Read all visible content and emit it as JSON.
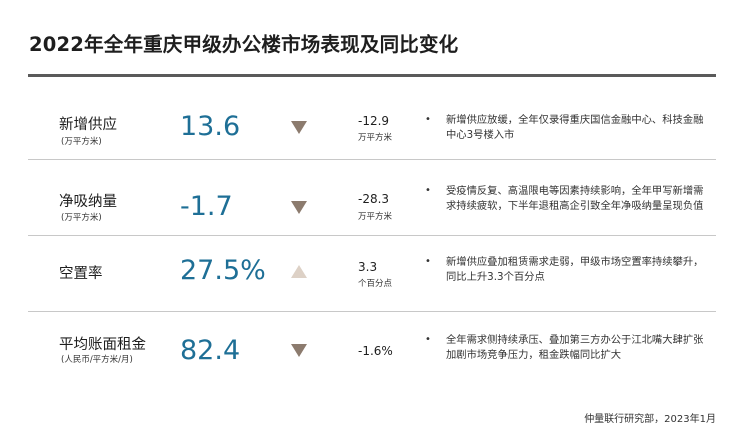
{
  "title": "2022年全年重庆甲级办公楼市场表现及同比变化",
  "rows": [
    {
      "name": "新增供应",
      "unit": "(万平方米)",
      "value": "13.6",
      "direction": "down",
      "change": "-12.9",
      "change_unit": "万平方米",
      "bullet": "•",
      "comment": "新增供应放缓，全年仅录得重庆国信金融中心、科技金融中心3号楼入市"
    },
    {
      "name": "净吸纳量",
      "unit": "(万平方米)",
      "value": "-1.7",
      "direction": "down",
      "change": "-28.3",
      "change_unit": "万平方米",
      "bullet": "•",
      "comment": "受疫情反复、高温限电等因素持续影响，全年甲写新增需求持续疲软，下半年退租高企引致全年净吸纳量呈现负值"
    },
    {
      "name": "空置率",
      "unit": "",
      "value": "27.5%",
      "direction": "up",
      "change": "3.3",
      "change_unit": "个百分点",
      "bullet": "•",
      "comment": "新增供应叠加租赁需求走弱，甲级市场空置率持续攀升，同比上升3.3个百分点"
    },
    {
      "name": "平均账面租金",
      "unit": "(人民币/平方米/月)",
      "value": "82.4",
      "direction": "down",
      "change": "-1.6%",
      "change_unit": "",
      "bullet": "•",
      "comment": "全年需求侧持续承压、叠加第三方办公于江北嘴大肆扩张加剧市场竞争压力，租金跌幅同比扩大"
    }
  ],
  "source": "仲量联行研究部，2023年1月",
  "colors": {
    "value": "#1e6f96",
    "arrow_down": "#8c7b6e",
    "arrow_up": "#ddd1c6",
    "rule": "#5a5a5a",
    "separator": "#c8c8c8"
  }
}
